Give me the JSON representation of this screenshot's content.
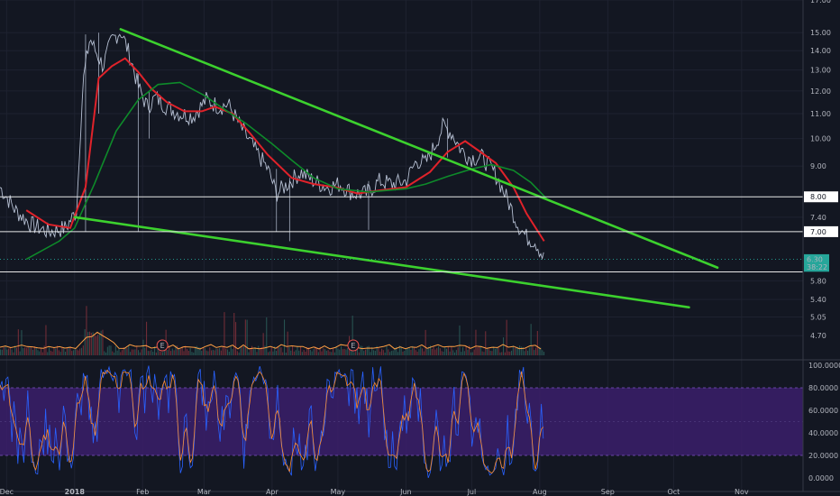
{
  "chart_data": {
    "type": "line",
    "title": "",
    "xlabel": "",
    "ylabel": "",
    "y_scale": "log",
    "ylim": [
      4.3,
      17.0
    ],
    "xlim": [
      "2017-11-28",
      "2018-11-29"
    ],
    "grid": true,
    "x_tick_labels": [
      {
        "date": "2017-12-01",
        "label": "Dec"
      },
      {
        "date": "2018-01-01",
        "label": "2018"
      },
      {
        "date": "2018-02-01",
        "label": "Feb"
      },
      {
        "date": "2018-03-01",
        "label": "Mar"
      },
      {
        "date": "2018-04-01",
        "label": "Apr"
      },
      {
        "date": "2018-05-01",
        "label": "May"
      },
      {
        "date": "2018-06-01",
        "label": "Jun"
      },
      {
        "date": "2018-07-01",
        "label": "Jul"
      },
      {
        "date": "2018-08-01",
        "label": "Aug"
      },
      {
        "date": "2018-09-01",
        "label": "Sep"
      },
      {
        "date": "2018-10-01",
        "label": "Oct"
      },
      {
        "date": "2018-11-01",
        "label": "Nov"
      }
    ],
    "y_tick_labels": [
      "17.00",
      "15.00",
      "14.00",
      "13.00",
      "12.00",
      "11.00",
      "10.00",
      "9.00",
      "7.40",
      "5.80",
      "5.40",
      "5.05",
      "4.70"
    ],
    "series": [
      {
        "color": "#c8d2e6",
        "x": [
          "2017-11-28",
          "2017-12-05",
          "2017-12-12",
          "2017-12-20",
          "2017-12-28",
          "2018-01-02",
          "2018-01-05",
          "2018-01-08",
          "2018-01-10",
          "2018-01-14",
          "2018-01-18",
          "2018-01-22",
          "2018-01-26",
          "2018-01-30",
          "2018-02-03",
          "2018-02-07",
          "2018-02-12",
          "2018-02-18",
          "2018-02-24",
          "2018-03-02",
          "2018-03-08",
          "2018-03-12",
          "2018-03-18",
          "2018-03-24",
          "2018-03-30",
          "2018-04-03",
          "2018-04-08",
          "2018-04-14",
          "2018-04-20",
          "2018-04-26",
          "2018-05-02",
          "2018-05-08",
          "2018-05-14",
          "2018-05-20",
          "2018-05-26",
          "2018-06-01",
          "2018-06-06",
          "2018-06-10",
          "2018-06-14",
          "2018-06-18",
          "2018-06-22",
          "2018-06-26",
          "2018-06-30",
          "2018-07-06",
          "2018-07-12",
          "2018-07-18",
          "2018-07-22",
          "2018-07-26",
          "2018-07-30",
          "2018-08-03"
        ],
        "values": [
          8.3,
          7.6,
          7.2,
          7.0,
          7.1,
          7.6,
          12.5,
          14.7,
          14.1,
          13.2,
          14.6,
          15.1,
          13.8,
          12.2,
          11.3,
          11.7,
          11.3,
          11.0,
          10.9,
          11.6,
          11.3,
          11.4,
          10.4,
          9.6,
          8.9,
          8.1,
          8.4,
          8.8,
          8.5,
          8.3,
          8.4,
          8.1,
          8.1,
          8.5,
          8.4,
          8.5,
          9.2,
          9.1,
          9.7,
          10.5,
          10.2,
          9.6,
          9.3,
          9.3,
          8.7,
          7.8,
          7.2,
          6.85,
          6.75,
          6.3
        ]
      },
      {
        "color": "#e0222a",
        "x": [
          "2017-12-10",
          "2017-12-20",
          "2017-12-30",
          "2018-01-06",
          "2018-01-12",
          "2018-01-18",
          "2018-01-24",
          "2018-01-30",
          "2018-02-05",
          "2018-02-12",
          "2018-02-20",
          "2018-02-28",
          "2018-03-06",
          "2018-03-14",
          "2018-03-22",
          "2018-03-30",
          "2018-04-10",
          "2018-04-20",
          "2018-04-30",
          "2018-05-10",
          "2018-05-20",
          "2018-06-01",
          "2018-06-12",
          "2018-06-20",
          "2018-06-28",
          "2018-07-05",
          "2018-07-12",
          "2018-07-20",
          "2018-07-26",
          "2018-08-03"
        ],
        "values": [
          7.6,
          7.2,
          7.1,
          8.3,
          12.6,
          13.2,
          13.6,
          12.9,
          12.1,
          11.5,
          11.1,
          11.1,
          11.3,
          11.0,
          10.2,
          9.4,
          8.6,
          8.4,
          8.3,
          8.1,
          8.2,
          8.3,
          8.8,
          9.5,
          9.9,
          9.5,
          9.1,
          8.3,
          7.5,
          6.75
        ]
      },
      {
        "color": "#0e8a2a",
        "x": [
          "2017-12-10",
          "2017-12-25",
          "2018-01-01",
          "2018-01-10",
          "2018-01-20",
          "2018-01-30",
          "2018-02-08",
          "2018-02-18",
          "2018-03-01",
          "2018-03-10",
          "2018-03-20",
          "2018-04-01",
          "2018-04-10",
          "2018-04-20",
          "2018-05-01",
          "2018-05-15",
          "2018-06-01",
          "2018-06-10",
          "2018-06-20",
          "2018-07-01",
          "2018-07-10",
          "2018-07-20",
          "2018-07-28",
          "2018-08-04"
        ],
        "values": [
          6.3,
          6.75,
          7.1,
          8.4,
          10.3,
          11.6,
          12.3,
          12.4,
          11.8,
          11.2,
          10.6,
          9.8,
          9.2,
          8.6,
          8.25,
          8.15,
          8.25,
          8.4,
          8.65,
          8.9,
          9.05,
          8.85,
          8.45,
          7.95
        ]
      }
    ],
    "trendlines": [
      {
        "color": "#3cd12e",
        "from": {
          "x": "2018-01-22",
          "y": 15.2
        },
        "to": {
          "x": "2018-10-21",
          "y": 6.1
        }
      },
      {
        "color": "#3cd12e",
        "from": {
          "x": "2018-01-01",
          "y": 7.4
        },
        "to": {
          "x": "2018-10-08",
          "y": 5.24
        }
      }
    ],
    "horizontal_lines": [
      {
        "y": 8.0,
        "label": "8.00"
      },
      {
        "y": 7.0,
        "label": "7.00"
      },
      {
        "y": 6.0,
        "label": ""
      }
    ],
    "price_badges": [
      {
        "label": "6.30",
        "y": 6.3,
        "color": "#26a69a"
      },
      {
        "label": "38:22",
        "y": 6.12,
        "color": "#26a69a"
      }
    ],
    "event_markers": [
      {
        "label": "E",
        "x": "2018-02-10"
      },
      {
        "label": "E",
        "x": "2018-05-08"
      }
    ],
    "oscillator": {
      "ylim": [
        0,
        100
      ],
      "tick_labels": [
        "100.0000",
        "80.0000",
        "60.0000",
        "40.0000",
        "20.0000",
        "0.0000"
      ],
      "band": [
        20,
        80
      ],
      "band_color": "#3b1f6b",
      "k_color": "#2962ff",
      "d_color": "#ff8c2a"
    }
  }
}
